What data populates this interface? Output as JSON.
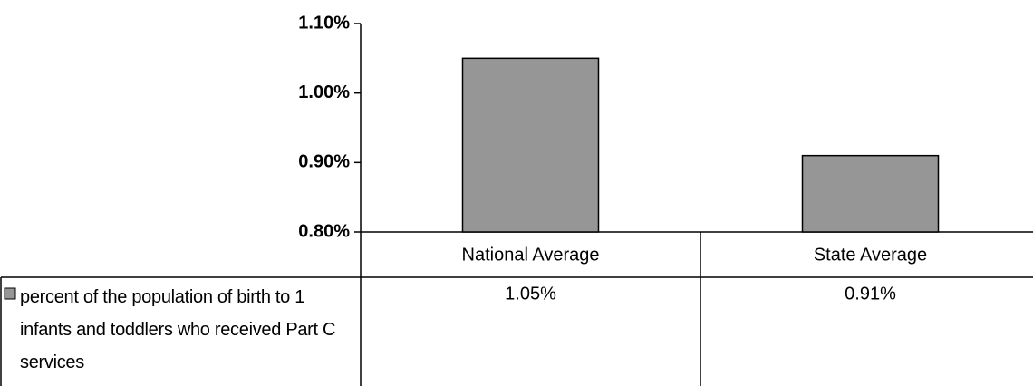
{
  "chart_data": {
    "type": "bar",
    "categories": [
      "National Average",
      "State Average"
    ],
    "series": [
      {
        "name": "percent of the population of birth to 1 infants and toddlers who received Part C services",
        "color": "#969696",
        "values": [
          1.05,
          0.91
        ],
        "value_labels": [
          "1.05%",
          "0.91%"
        ]
      }
    ],
    "ylim": [
      0.8,
      1.1
    ],
    "yticks": [
      {
        "value": 0.8,
        "label": "0.80%"
      },
      {
        "value": 0.9,
        "label": "0.90%"
      },
      {
        "value": 1.0,
        "label": "1.00%"
      },
      {
        "value": 1.1,
        "label": "1.10%"
      }
    ],
    "grid": false
  }
}
